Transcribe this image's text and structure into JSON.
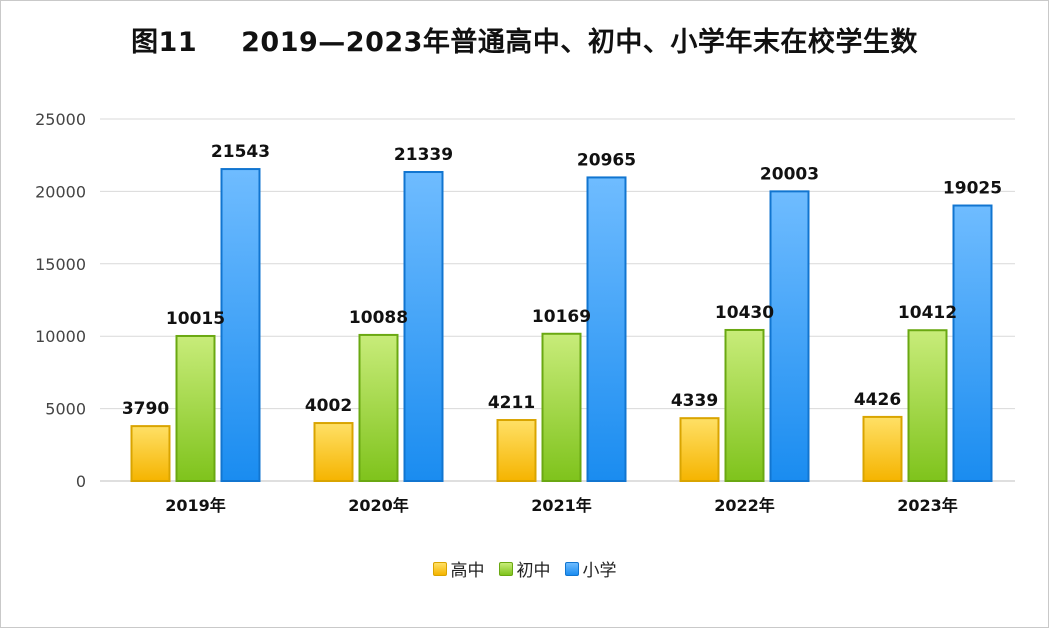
{
  "chart_data": {
    "type": "bar",
    "title_prefix": "图11",
    "title_main": "2019—2023年普通高中、初中、小学年末在校学生数",
    "categories": [
      "2019年",
      "2020年",
      "2021年",
      "2022年",
      "2023年"
    ],
    "series": [
      {
        "name": "高中",
        "values": [
          3790,
          4002,
          4211,
          4339,
          4426
        ],
        "color_top": "#ffe066",
        "color_bottom": "#f5b400",
        "stroke": "#d9a400"
      },
      {
        "name": "初中",
        "values": [
          10015,
          10088,
          10169,
          10430,
          10412
        ],
        "color_top": "#c8ec7a",
        "color_bottom": "#7fc31c",
        "stroke": "#6aa812"
      },
      {
        "name": "小学",
        "values": [
          21543,
          21339,
          20965,
          20003,
          19025
        ],
        "color_top": "#6fbcff",
        "color_bottom": "#1a8cf0",
        "stroke": "#1175d0"
      }
    ],
    "yticks": [
      0,
      5000,
      10000,
      15000,
      20000,
      25000
    ],
    "ylim": [
      0,
      25000
    ],
    "grid": true,
    "legend_position": "bottom"
  }
}
